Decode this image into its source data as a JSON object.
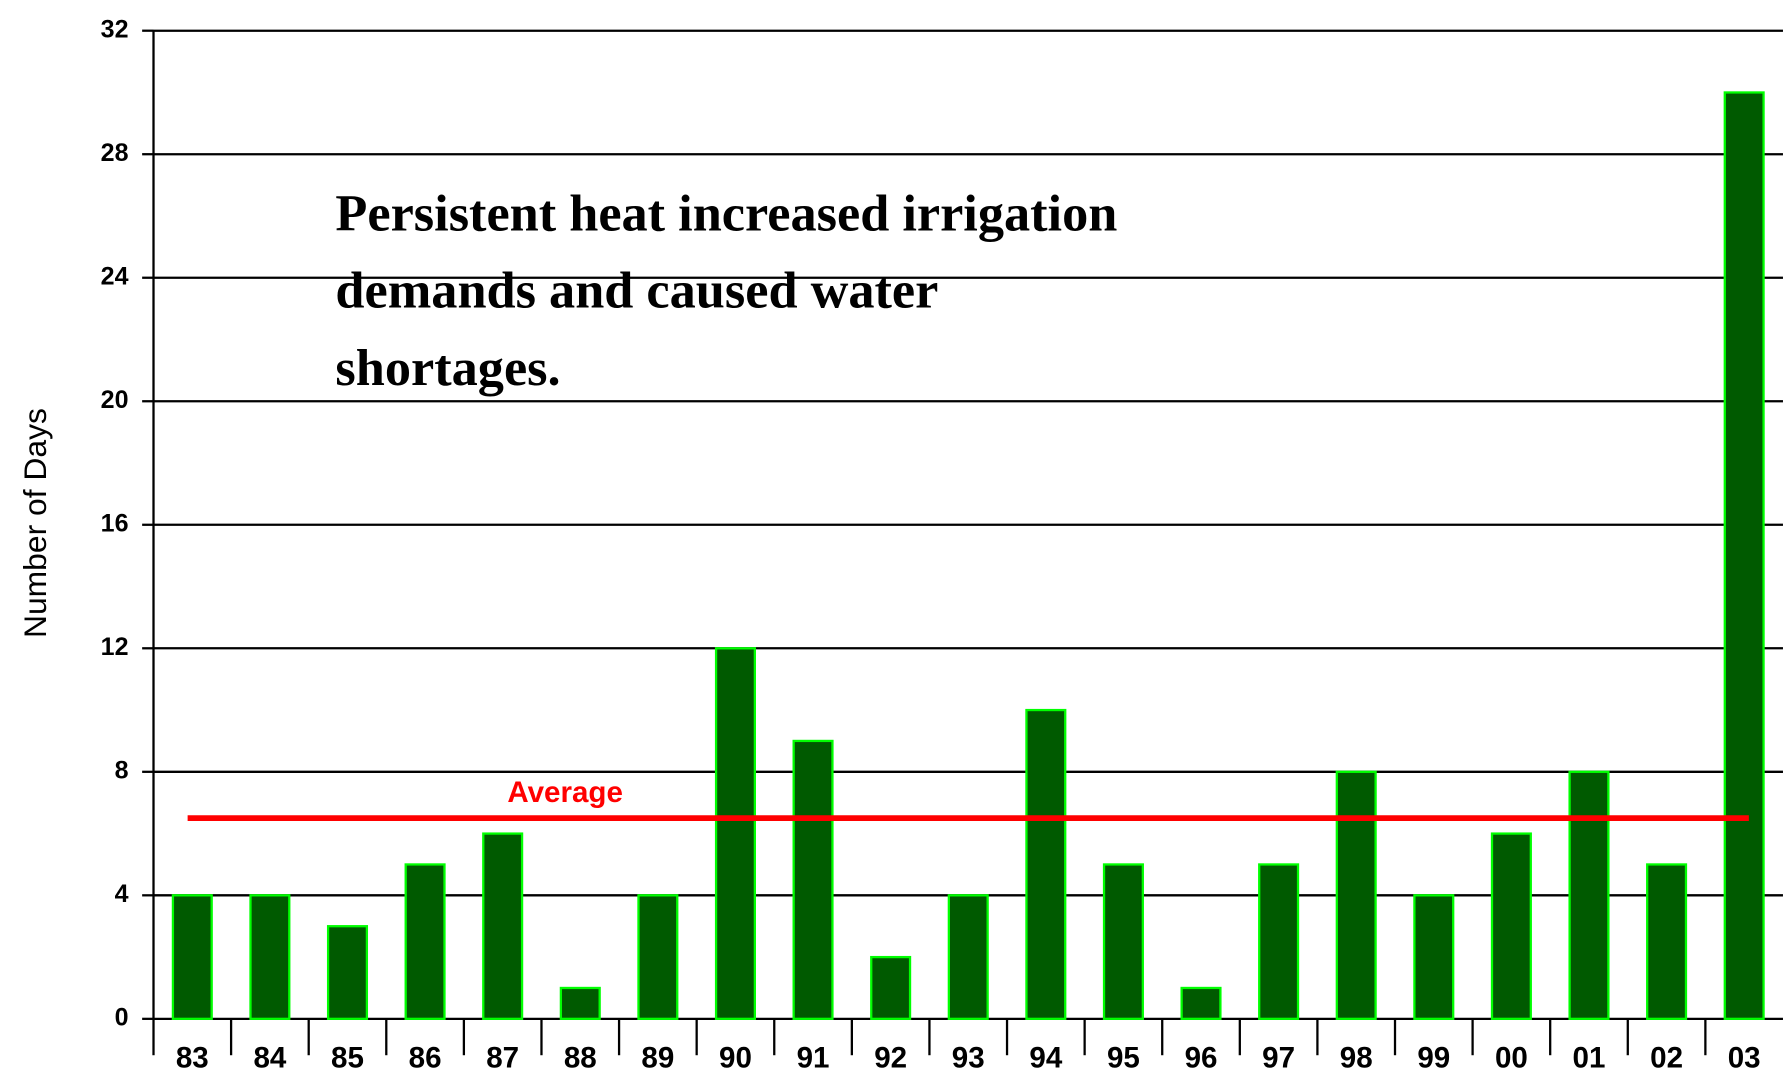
{
  "chart_data": {
    "type": "bar",
    "ylabel": "Number of Days",
    "annotation": [
      "Persistent heat increased irrigation",
      "demands and caused water",
      "shortages."
    ],
    "categories": [
      "83",
      "84",
      "85",
      "86",
      "87",
      "88",
      "89",
      "90",
      "91",
      "92",
      "93",
      "94",
      "95",
      "96",
      "97",
      "98",
      "99",
      "00",
      "01",
      "02",
      "03"
    ],
    "values": [
      4,
      4,
      3,
      5,
      6,
      1,
      4,
      12,
      9,
      2,
      4,
      10,
      5,
      1,
      5,
      8,
      4,
      6,
      8,
      5,
      30
    ],
    "color": "#005a00",
    "edge_color": "#00ff00",
    "average": {
      "label": "Average",
      "value": 6.5,
      "color": "#ff0000"
    },
    "ylim": [
      0,
      32
    ],
    "yticks": [
      0,
      4,
      8,
      12,
      16,
      20,
      24,
      28,
      32
    ],
    "grid": true
  }
}
